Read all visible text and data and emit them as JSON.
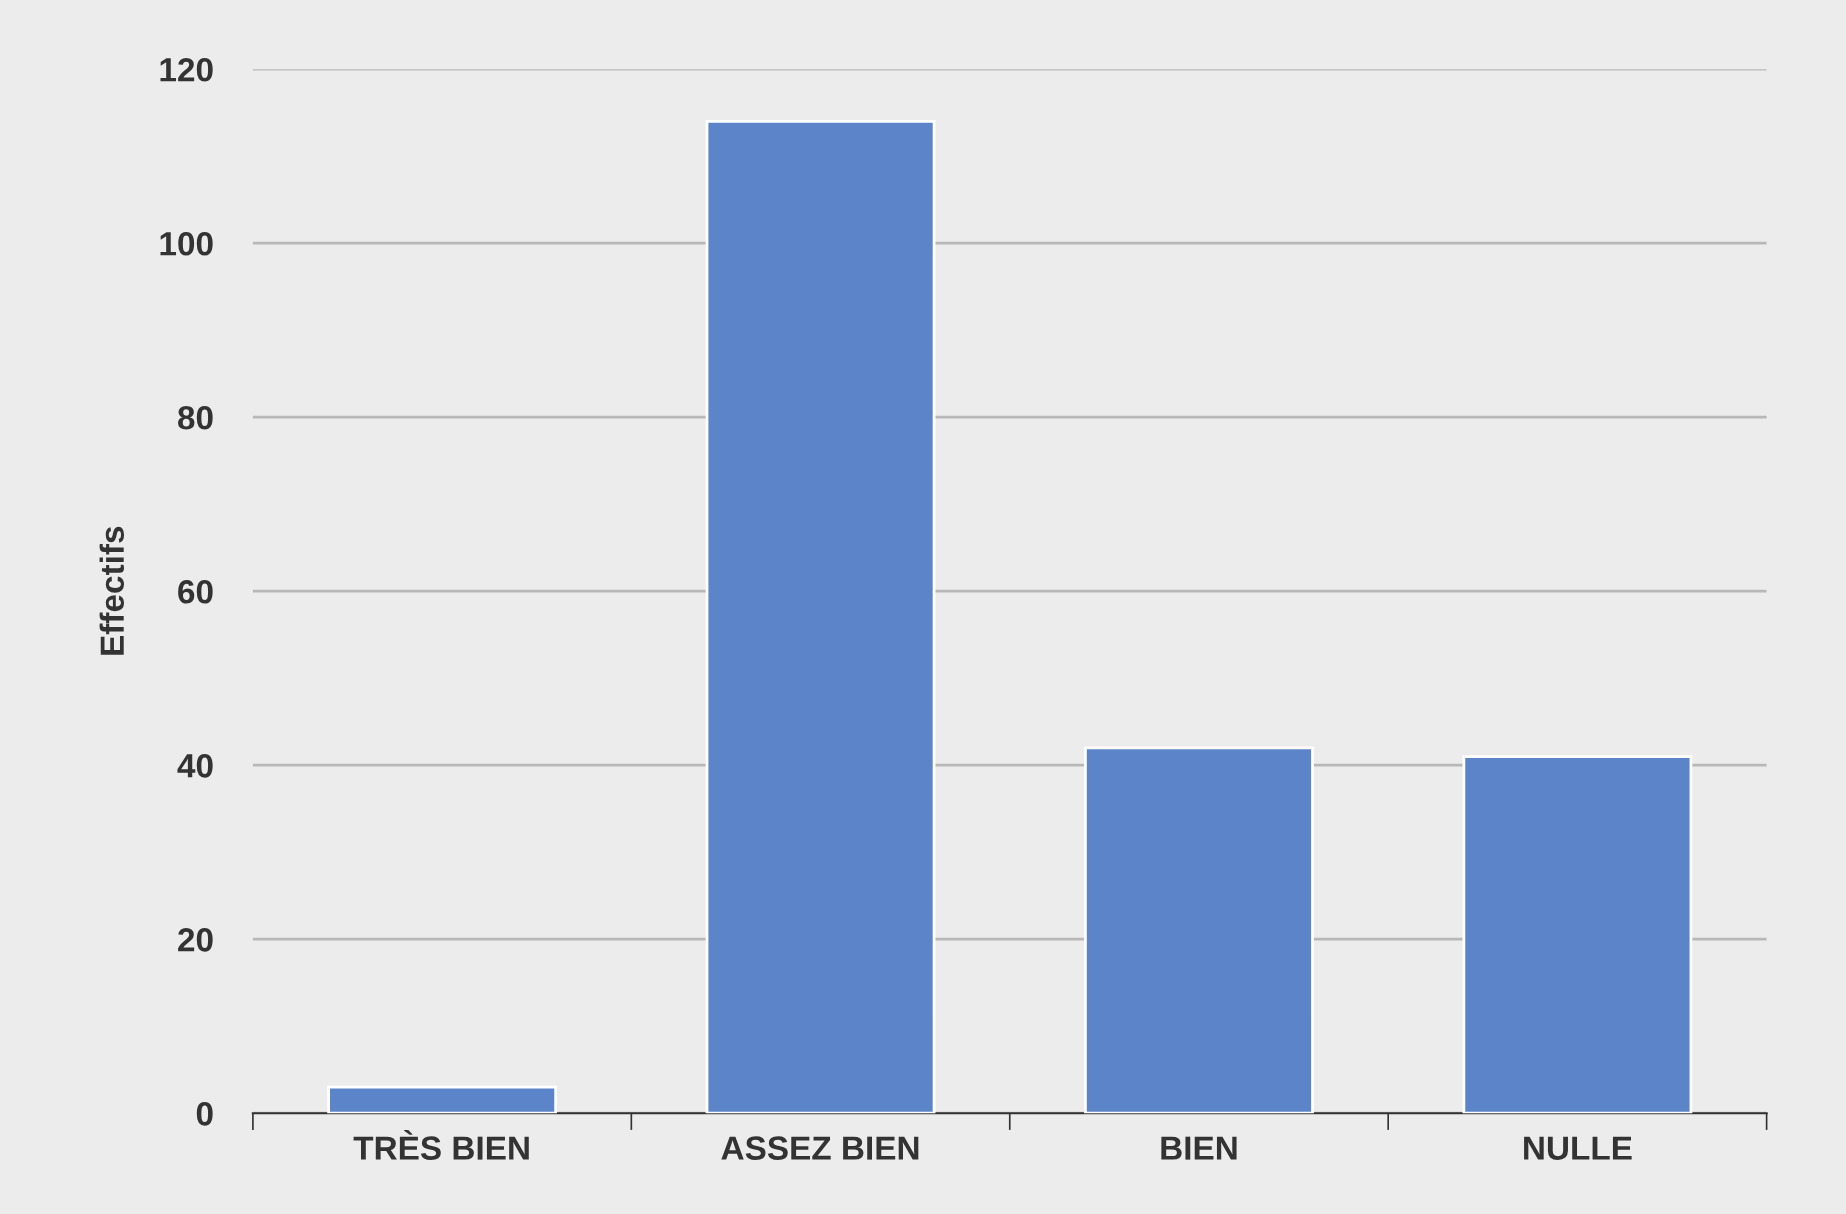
{
  "chart_data": {
    "type": "bar",
    "ylabel": "Effectifs",
    "categories": [
      "TRÈS BIEN",
      "ASSEZ BIEN",
      "BIEN",
      "NULLE"
    ],
    "values": [
      3,
      114,
      42,
      41
    ],
    "color": "#5b84c9",
    "ylim": [
      0,
      120
    ],
    "yticks": [
      0,
      20,
      40,
      60,
      80,
      100,
      120
    ],
    "grid": "y"
  }
}
